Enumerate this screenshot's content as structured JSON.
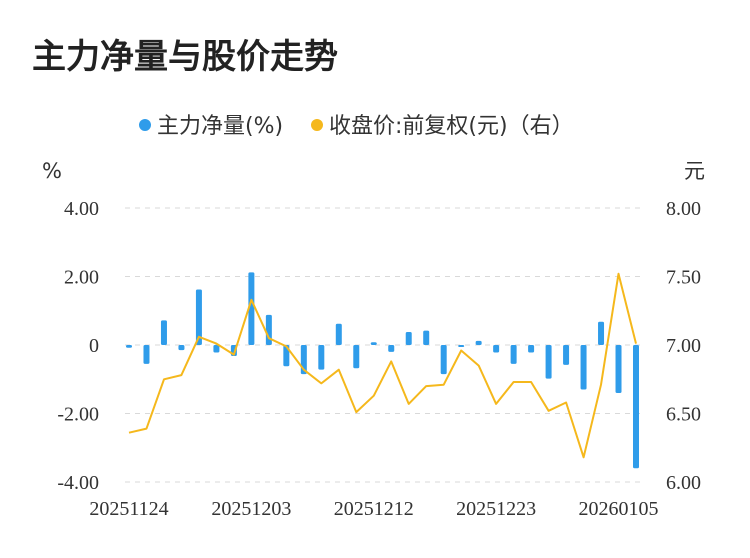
{
  "title": "主力净量与股价走势",
  "legend": {
    "items": [
      {
        "label": "主力净量(%)",
        "color": "#2f9cea"
      },
      {
        "label": "收盘价:前复权(元)（右）",
        "color": "#f5b81c"
      }
    ]
  },
  "left_unit": "%",
  "right_unit": "元",
  "colors": {
    "bar": "#2f9cea",
    "line": "#f5b81c",
    "grid": "#d9d9d9",
    "text": "#333333"
  },
  "chart_data": {
    "type": "bar+line",
    "x_tick_labels": [
      "20251124",
      "20251203",
      "20251212",
      "20251223",
      "20260105"
    ],
    "x_tick_indices": [
      0,
      7,
      14,
      21,
      28
    ],
    "y_left": {
      "ticks": [
        "4.00",
        "2.00",
        "0",
        "-2.00",
        "-4.00"
      ],
      "range": [
        -4,
        4
      ]
    },
    "y_right": {
      "ticks": [
        "8.00",
        "7.50",
        "7.00",
        "6.50",
        "6.00"
      ],
      "range": [
        6,
        8
      ]
    },
    "series": [
      {
        "name": "主力净量(%)",
        "type": "bar",
        "axis": "left",
        "values": [
          -0.08,
          -0.55,
          0.72,
          -0.15,
          1.62,
          -0.22,
          -0.32,
          2.12,
          0.88,
          -0.62,
          -0.85,
          -0.72,
          0.62,
          -0.68,
          0.08,
          -0.2,
          0.38,
          0.42,
          -0.85,
          -0.04,
          0.12,
          -0.22,
          -0.55,
          -0.22,
          -0.98,
          -0.58,
          -1.3,
          0.68,
          -1.4,
          -3.6
        ]
      },
      {
        "name": "收盘价:前复权(元)（右）",
        "type": "line",
        "axis": "right",
        "values": [
          6.36,
          6.39,
          6.75,
          6.78,
          7.06,
          7.01,
          6.93,
          7.33,
          7.05,
          6.99,
          6.82,
          6.72,
          6.82,
          6.51,
          6.63,
          6.88,
          6.57,
          6.7,
          6.71,
          6.96,
          6.85,
          6.57,
          6.73,
          6.73,
          6.52,
          6.58,
          6.18,
          6.71,
          7.52,
          7.01
        ]
      }
    ]
  }
}
